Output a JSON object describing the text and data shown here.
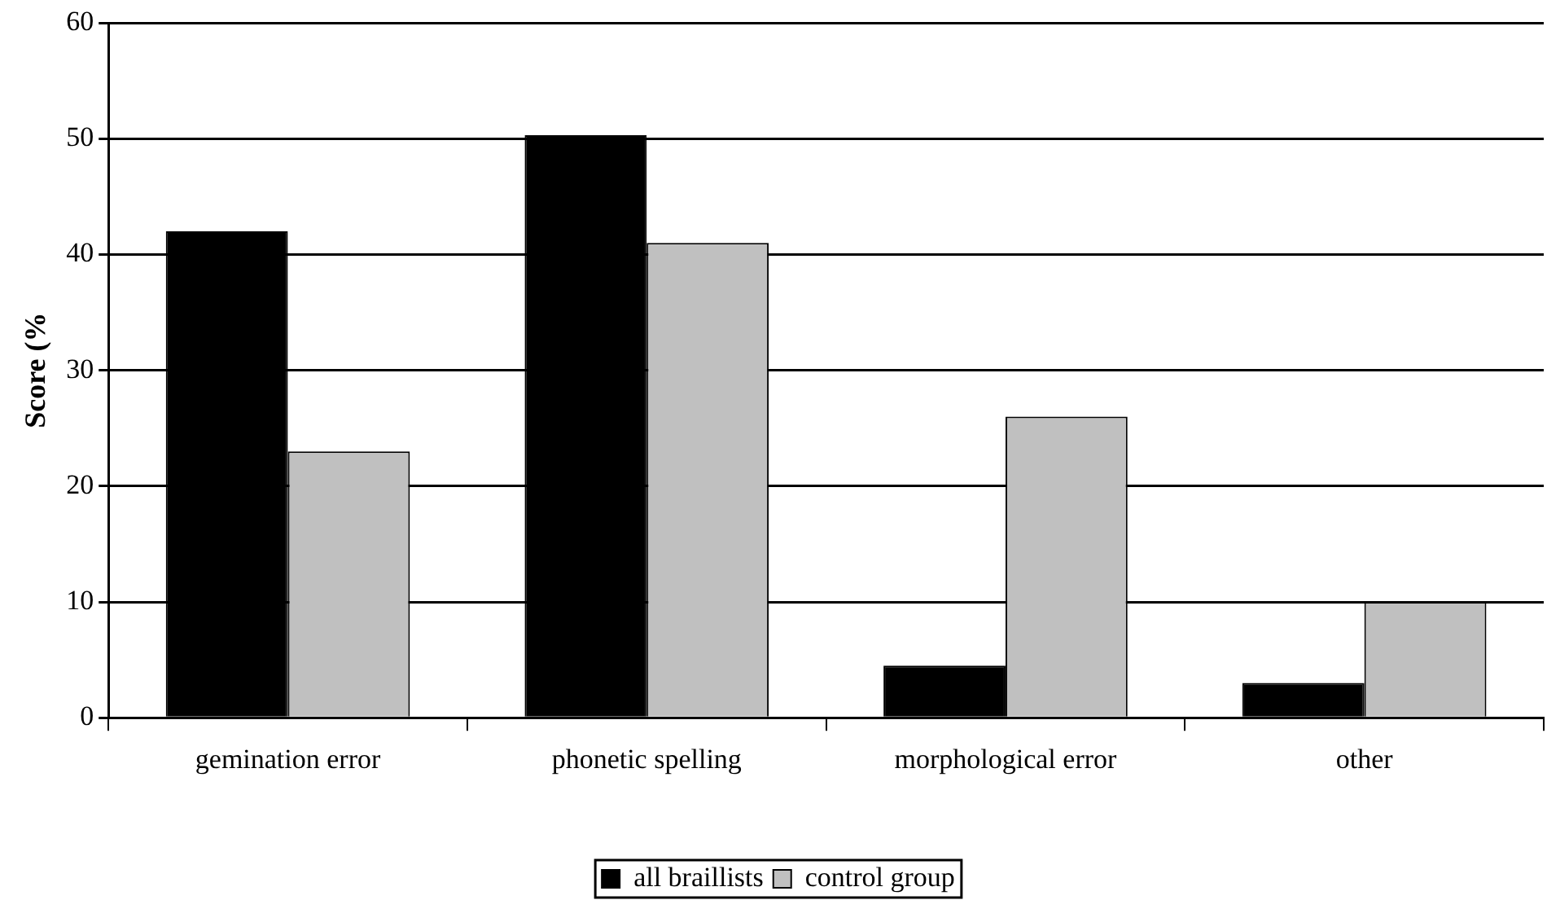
{
  "chart_data": {
    "type": "bar",
    "ylabel": "Score (%",
    "categories": [
      "gemination error",
      "phonetic spelling",
      "morphological error",
      "other"
    ],
    "series": [
      {
        "name": "all braillists",
        "color": "#000000",
        "values": [
          42,
          50.3,
          4.5,
          3
        ]
      },
      {
        "name": "control group",
        "color": "#c0c0c0",
        "values": [
          23,
          41,
          26,
          10
        ]
      }
    ],
    "ylim": [
      0,
      60
    ],
    "yticks": [
      0,
      10,
      20,
      30,
      40,
      50,
      60
    ],
    "grid": "y",
    "legend": "bottom"
  }
}
